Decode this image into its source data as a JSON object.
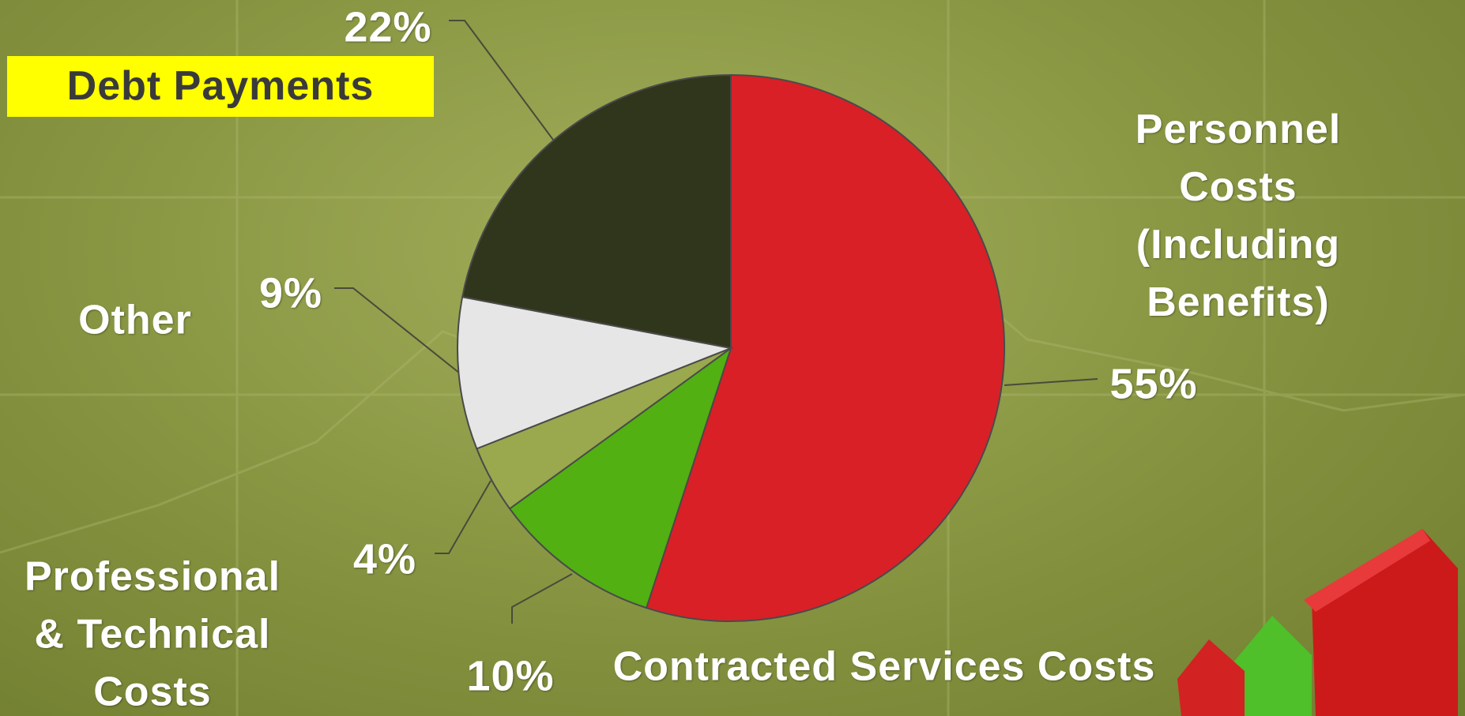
{
  "chart_data": {
    "type": "pie",
    "categories": [
      "Personnel Costs\n(Including Benefits)",
      "Contracted Services Costs",
      "Professional\n& Technical\nCosts",
      "Other",
      "Debt Payments"
    ],
    "values": [
      55,
      10,
      4,
      9,
      22
    ],
    "value_labels": [
      "55%",
      "10%",
      "4%",
      "9%",
      "22%"
    ],
    "colors": [
      "#d92027",
      "#52b012",
      "#9aa84e",
      "#e6e6e6",
      "#30361b"
    ]
  }
}
